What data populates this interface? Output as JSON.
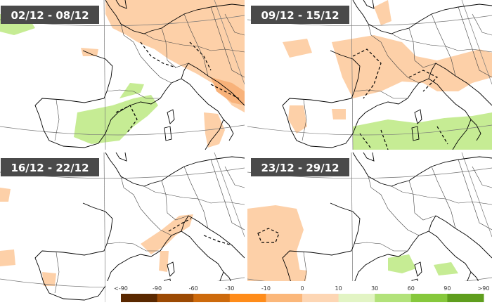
{
  "panels": [
    {
      "title": "02/12 - 08/12"
    },
    {
      "title": "09/12 - 15/12"
    },
    {
      "title": "16/12 - 22/12"
    },
    {
      "title": "23/12 - 29/12"
    }
  ],
  "legend": {
    "labels": [
      "<-90",
      "-90",
      "-60",
      "-30",
      "-10",
      "0",
      "10",
      "30",
      "60",
      "90",
      ">90"
    ],
    "colors": [
      "#5a2800",
      "#9c4a04",
      "#cd6a0c",
      "#ff8c1a",
      "#fbb77a",
      "#fdd6b4",
      "#e2f4c4",
      "#b2e27a",
      "#86c83c",
      "#5f9e1e",
      "#416e12"
    ]
  }
}
